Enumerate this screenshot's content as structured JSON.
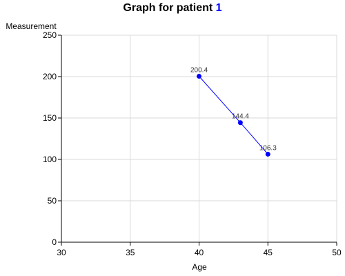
{
  "chart_data": {
    "type": "line",
    "title": "Graph for patient",
    "title_patient_id": "1",
    "xlabel": "Age",
    "ylabel": "Measurement",
    "xlim": [
      30,
      50
    ],
    "ylim": [
      0,
      250
    ],
    "x_ticks": [
      30,
      35,
      40,
      45,
      50
    ],
    "y_ticks": [
      0,
      50,
      100,
      150,
      200,
      250
    ],
    "grid": true,
    "series": [
      {
        "x": [
          40,
          43,
          45
        ],
        "y": [
          200.4,
          144.4,
          106.3
        ],
        "labels": [
          "200.4",
          "144.4",
          "106.3"
        ],
        "color": "#0000ff"
      }
    ],
    "colors": {
      "grid": "#d9d9d9",
      "axis": "#000000",
      "patient_id": "#0000ff"
    }
  }
}
